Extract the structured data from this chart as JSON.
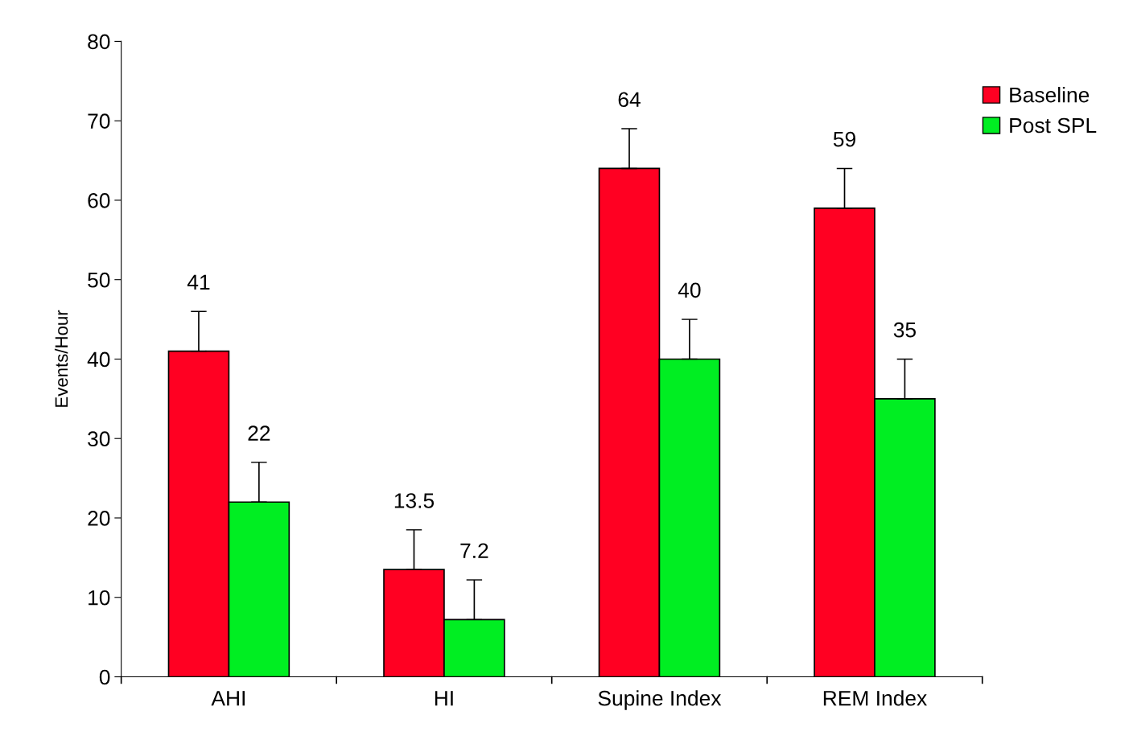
{
  "chart_data": {
    "type": "bar",
    "ylabel": "Events/Hour",
    "categories": [
      "AHI",
      "HI",
      "Supine Index",
      "REM Index"
    ],
    "series": [
      {
        "name": "Baseline",
        "color": "#ff0022",
        "values": [
          41,
          13.5,
          64,
          59
        ],
        "errors": [
          [
            41,
            46
          ],
          [
            13.5,
            18.5
          ],
          [
            64,
            69
          ],
          [
            59,
            64
          ]
        ]
      },
      {
        "name": "Post SPL",
        "color": "#00ee22",
        "values": [
          22,
          7.2,
          40,
          35
        ],
        "errors": [
          [
            22,
            27
          ],
          [
            7.2,
            12.2
          ],
          [
            40,
            45
          ],
          [
            35,
            40
          ]
        ]
      }
    ],
    "ylim": [
      0,
      80
    ],
    "yticks": [
      0,
      10,
      20,
      30,
      40,
      50,
      60,
      70,
      80
    ],
    "data_labels": true,
    "legend": "top right",
    "grid": false
  }
}
